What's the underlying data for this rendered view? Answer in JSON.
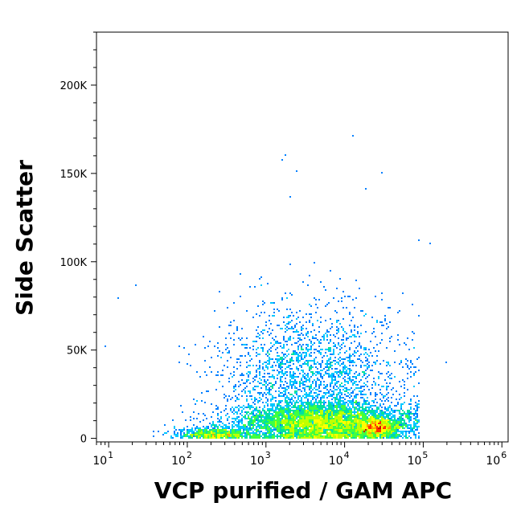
{
  "chart_data": {
    "type": "scatter",
    "style": "flow-cytometry density dot plot (pseudocolor)",
    "title": "",
    "xlabel": "VCP purified / GAM APC",
    "ylabel": "Side Scatter",
    "x_scale": "log",
    "x_range": [
      7,
      1200000
    ],
    "y_range": [
      -2000,
      230000
    ],
    "x_ticks": [
      {
        "value": 10,
        "base": "10",
        "exp": "1"
      },
      {
        "value": 100,
        "base": "10",
        "exp": "2"
      },
      {
        "value": 1000,
        "base": "10",
        "exp": "3"
      },
      {
        "value": 10000,
        "base": "10",
        "exp": "4"
      },
      {
        "value": 100000,
        "base": "10",
        "exp": "5"
      },
      {
        "value": 1000000,
        "base": "10",
        "exp": "6"
      }
    ],
    "y_ticks": [
      {
        "value": 0,
        "label": "0"
      },
      {
        "value": 50000,
        "label": "50K"
      },
      {
        "value": 100000,
        "label": "100K"
      },
      {
        "value": 150000,
        "label": "150K"
      },
      {
        "value": 200000,
        "label": "200K"
      }
    ],
    "density_colors": [
      "#0000ff",
      "#0080ff",
      "#00c8ff",
      "#00e0a0",
      "#40ff40",
      "#c0ff00",
      "#ffff00",
      "#ffa000",
      "#ff3000",
      "#cc0000"
    ],
    "grid": false,
    "legend": "none",
    "populations": [
      {
        "x_log_mean": 3.7,
        "x_log_sd": 0.55,
        "y_mean": 9000,
        "y_sd": 6000,
        "weight": 0.55
      },
      {
        "x_log_mean": 4.4,
        "x_log_sd": 0.15,
        "y_mean": 6000,
        "y_sd": 3000,
        "weight": 0.12
      },
      {
        "x_log_mean": 2.35,
        "x_log_sd": 0.25,
        "y_mean": 2500,
        "y_sd": 2000,
        "weight": 0.08
      },
      {
        "x_log_mean": 3.6,
        "x_log_sd": 0.6,
        "y_mean": 35000,
        "y_sd": 20000,
        "weight": 0.25
      }
    ],
    "outliers": [
      {
        "x": 490,
        "y": 230000
      },
      {
        "x": 12500,
        "y": 171000
      },
      {
        "x": 1800,
        "y": 160000
      },
      {
        "x": 1600,
        "y": 158000
      },
      {
        "x": 2500,
        "y": 151000
      },
      {
        "x": 30000,
        "y": 150000
      },
      {
        "x": 19000,
        "y": 141000
      },
      {
        "x": 2000,
        "y": 137000
      },
      {
        "x": 22,
        "y": 87000
      },
      {
        "x": 9,
        "y": 52000
      },
      {
        "x": 200000,
        "y": 43000
      },
      {
        "x": 90000,
        "y": 112000
      },
      {
        "x": 120000,
        "y": 110000
      }
    ]
  }
}
